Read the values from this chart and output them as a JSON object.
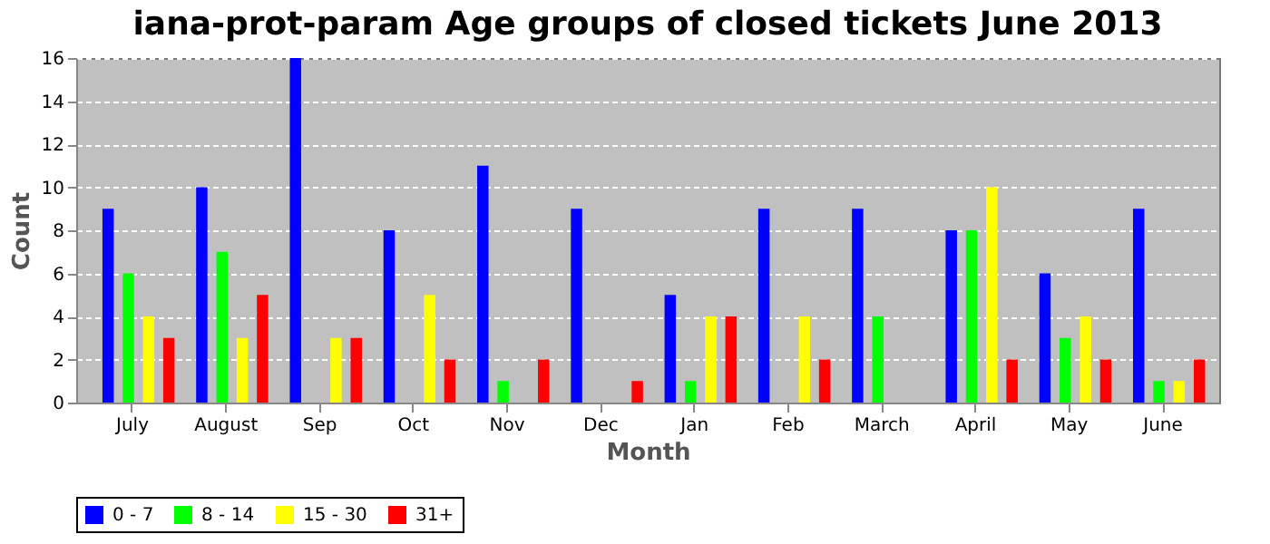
{
  "chart_data": {
    "type": "bar",
    "title": "iana-prot-param Age groups of closed tickets June 2013",
    "xlabel": "Month",
    "ylabel": "Count",
    "categories": [
      "July",
      "August",
      "Sep",
      "Oct",
      "Nov",
      "Dec",
      "Jan",
      "Feb",
      "March",
      "April",
      "May",
      "June"
    ],
    "series": [
      {
        "name": "0 - 7",
        "color": "#0000ff",
        "values": [
          9,
          10,
          16,
          8,
          11,
          9,
          5,
          9,
          9,
          8,
          6,
          9
        ]
      },
      {
        "name": "8 - 14",
        "color": "#00ff00",
        "values": [
          6,
          7,
          0,
          0,
          1,
          0,
          1,
          0,
          4,
          8,
          3,
          1
        ]
      },
      {
        "name": "15 - 30",
        "color": "#ffff00",
        "values": [
          4,
          3,
          3,
          5,
          0,
          0,
          4,
          4,
          0,
          10,
          4,
          1
        ]
      },
      {
        "name": "31+",
        "color": "#ff0000",
        "values": [
          3,
          5,
          3,
          2,
          2,
          1,
          4,
          2,
          0,
          2,
          2,
          2
        ]
      }
    ],
    "ylim": [
      0,
      16
    ],
    "yticks": [
      0,
      2,
      4,
      6,
      8,
      10,
      12,
      14,
      16
    ],
    "grid": "y",
    "legend": "bottom"
  }
}
